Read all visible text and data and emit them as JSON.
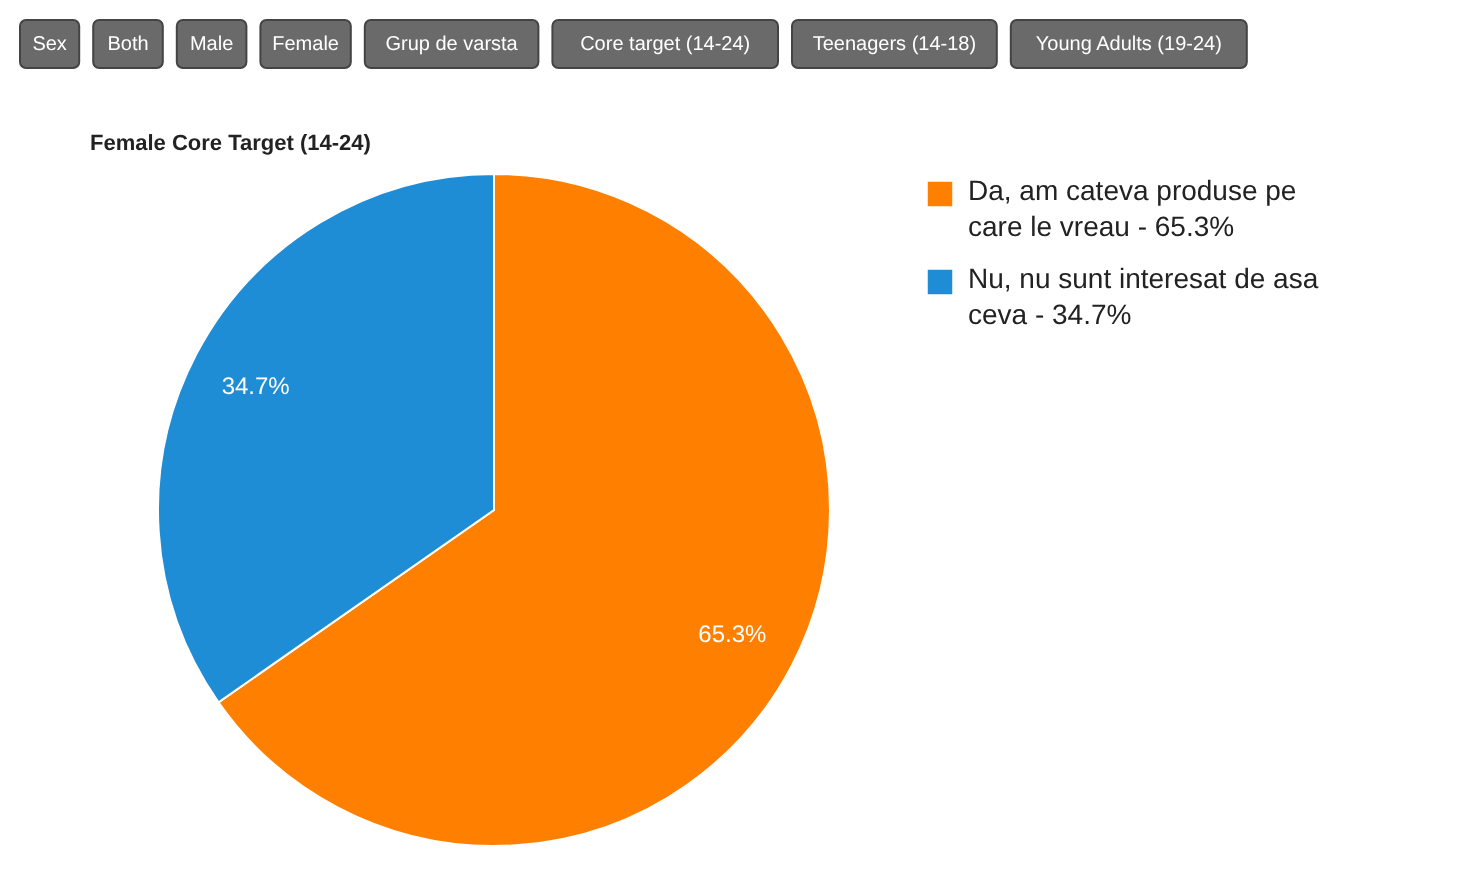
{
  "chart_data": {
    "type": "pie",
    "title": "Female Core Target (14-24)",
    "categories": [
      "Da, am cateva produse pe care le vreau - 65.3%",
      "Nu, nu sunt interesat de asa ceva - 34.7%"
    ],
    "values": [
      65.3,
      34.7
    ],
    "colors": [
      "#ff8000",
      "#1f8dd6"
    ],
    "value_labels": [
      "65.3%",
      "34.7%"
    ],
    "legend": "right",
    "annotations": [
      "Sex",
      "Both",
      "Male",
      "Female",
      "Grup de varsta",
      "Core target (14-24)",
      "Teenagers (14-18)",
      "Young Adults (19-24)"
    ]
  }
}
